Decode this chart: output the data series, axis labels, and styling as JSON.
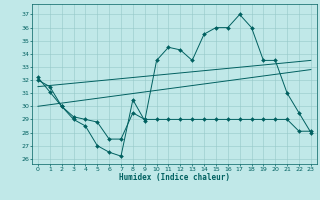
{
  "xlabel": "Humidex (Indice chaleur)",
  "background_color": "#c0e8e8",
  "grid_color": "#96c8c8",
  "line_color": "#006060",
  "xlim": [
    -0.5,
    23.5
  ],
  "ylim": [
    25.6,
    37.8
  ],
  "yticks": [
    26,
    27,
    28,
    29,
    30,
    31,
    32,
    33,
    34,
    35,
    36,
    37
  ],
  "xticks": [
    0,
    1,
    2,
    3,
    4,
    5,
    6,
    7,
    8,
    9,
    10,
    11,
    12,
    13,
    14,
    15,
    16,
    17,
    18,
    19,
    20,
    21,
    22,
    23
  ],
  "curve1_x": [
    0,
    1,
    2,
    3,
    4,
    5,
    6,
    7,
    8,
    9,
    10,
    11,
    12,
    13,
    14,
    15,
    16,
    17,
    18,
    19,
    20,
    21,
    22,
    23
  ],
  "curve1_y": [
    32.2,
    31.1,
    30.0,
    29.0,
    28.5,
    27.0,
    26.5,
    26.2,
    30.5,
    28.9,
    33.5,
    34.5,
    34.3,
    33.5,
    35.5,
    36.0,
    36.0,
    37.0,
    36.0,
    33.5,
    33.5,
    31.0,
    29.5,
    28.0
  ],
  "curve2_x": [
    0,
    1,
    2,
    3,
    4,
    5,
    6,
    7,
    8,
    9,
    10,
    11,
    12,
    13,
    14,
    15,
    16,
    17,
    18,
    19,
    20,
    21,
    22,
    23
  ],
  "curve2_y": [
    32.0,
    31.5,
    30.0,
    29.2,
    29.0,
    28.8,
    27.5,
    27.5,
    29.5,
    29.0,
    29.0,
    29.0,
    29.0,
    29.0,
    29.0,
    29.0,
    29.0,
    29.0,
    29.0,
    29.0,
    29.0,
    29.0,
    28.1,
    28.1
  ],
  "trend1_x": [
    0,
    23
  ],
  "trend1_y": [
    31.5,
    33.5
  ],
  "trend2_x": [
    0,
    23
  ],
  "trend2_y": [
    30.0,
    32.8
  ]
}
